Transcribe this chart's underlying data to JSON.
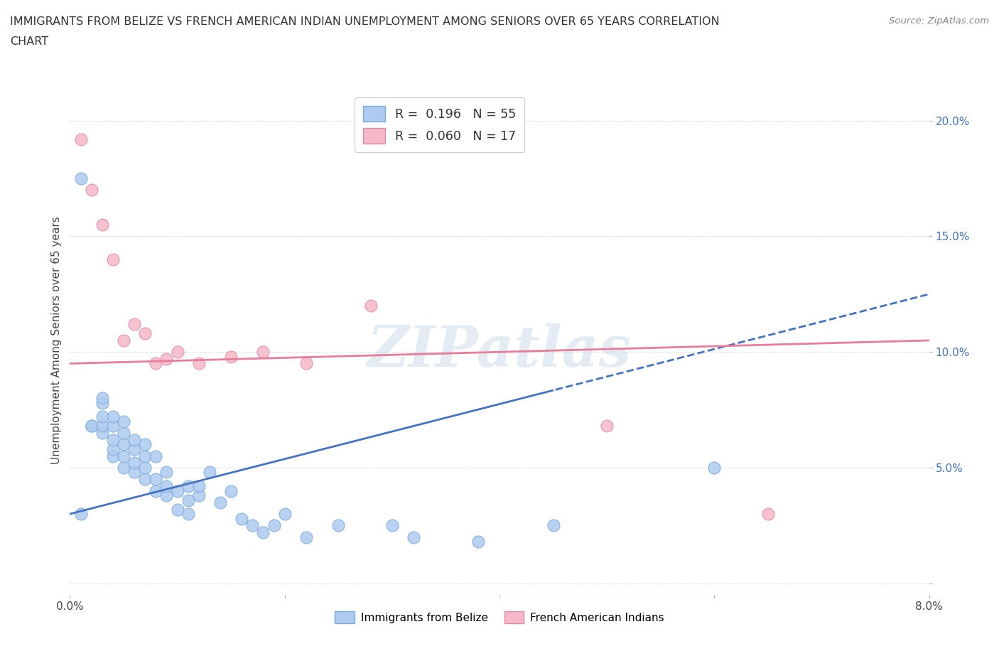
{
  "title_line1": "IMMIGRANTS FROM BELIZE VS FRENCH AMERICAN INDIAN UNEMPLOYMENT AMONG SENIORS OVER 65 YEARS CORRELATION",
  "title_line2": "CHART",
  "source": "Source: ZipAtlas.com",
  "ylabel": "Unemployment Among Seniors over 65 years",
  "xlim": [
    0.0,
    0.08
  ],
  "ylim": [
    -0.005,
    0.215
  ],
  "belize_color": "#aecbef",
  "belize_edge": "#7aaad8",
  "french_color": "#f5b8c8",
  "french_edge": "#e08aaa",
  "trend_belize_color": "#4472c4",
  "trend_french_color": "#e87d9a",
  "R_belize": 0.196,
  "N_belize": 55,
  "R_french": 0.06,
  "N_french": 17,
  "belize_x": [
    0.001,
    0.001,
    0.002,
    0.002,
    0.003,
    0.003,
    0.003,
    0.003,
    0.003,
    0.004,
    0.004,
    0.004,
    0.004,
    0.004,
    0.005,
    0.005,
    0.005,
    0.005,
    0.005,
    0.006,
    0.006,
    0.006,
    0.006,
    0.007,
    0.007,
    0.007,
    0.007,
    0.008,
    0.008,
    0.008,
    0.009,
    0.009,
    0.009,
    0.01,
    0.01,
    0.011,
    0.011,
    0.011,
    0.012,
    0.012,
    0.013,
    0.014,
    0.015,
    0.016,
    0.017,
    0.018,
    0.019,
    0.02,
    0.022,
    0.025,
    0.03,
    0.032,
    0.038,
    0.045,
    0.06
  ],
  "belize_y": [
    0.03,
    0.175,
    0.068,
    0.068,
    0.065,
    0.068,
    0.072,
    0.078,
    0.08,
    0.055,
    0.058,
    0.062,
    0.068,
    0.072,
    0.05,
    0.055,
    0.06,
    0.065,
    0.07,
    0.048,
    0.052,
    0.058,
    0.062,
    0.045,
    0.05,
    0.055,
    0.06,
    0.04,
    0.045,
    0.055,
    0.038,
    0.042,
    0.048,
    0.032,
    0.04,
    0.03,
    0.036,
    0.042,
    0.038,
    0.042,
    0.048,
    0.035,
    0.04,
    0.028,
    0.025,
    0.022,
    0.025,
    0.03,
    0.02,
    0.025,
    0.025,
    0.02,
    0.018,
    0.025,
    0.05
  ],
  "french_x": [
    0.001,
    0.002,
    0.003,
    0.004,
    0.005,
    0.006,
    0.007,
    0.008,
    0.009,
    0.01,
    0.012,
    0.015,
    0.018,
    0.022,
    0.028,
    0.05,
    0.065
  ],
  "french_y": [
    0.192,
    0.17,
    0.155,
    0.14,
    0.105,
    0.112,
    0.108,
    0.095,
    0.097,
    0.1,
    0.095,
    0.098,
    0.1,
    0.095,
    0.12,
    0.068,
    0.03
  ],
  "watermark": "ZIPatlas",
  "grid_color": "#e0e0e0",
  "ytick_color": "#4472c4",
  "background_color": "#ffffff"
}
